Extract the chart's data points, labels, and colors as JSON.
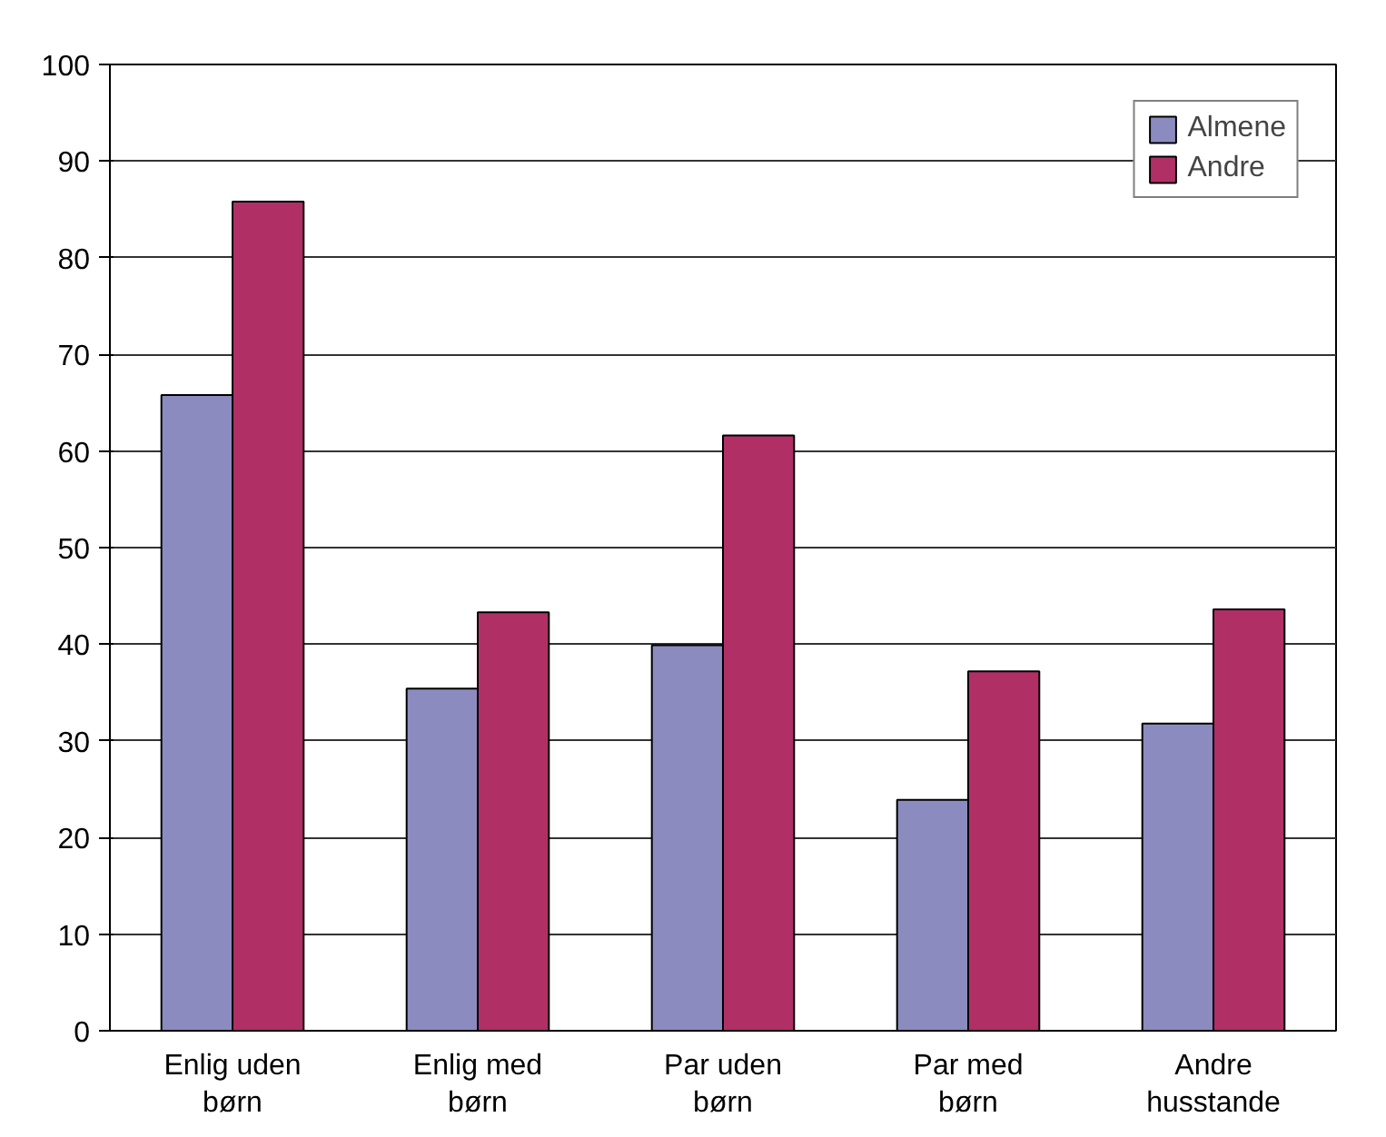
{
  "chart_data": {
    "type": "bar",
    "categories": [
      "Enlig uden\nbørn",
      "Enlig med\nbørn",
      "Par uden\nbørn",
      "Par med\nbørn",
      "Andre\nhusstande"
    ],
    "series": [
      {
        "name": "Almene",
        "color": "#8b8bbf",
        "values": [
          65.8,
          35.4,
          39.9,
          23.9,
          31.8
        ]
      },
      {
        "name": "Andre",
        "color": "#b03066",
        "values": [
          85.8,
          43.3,
          61.6,
          37.2,
          43.6
        ]
      }
    ],
    "ylim": [
      0,
      100
    ],
    "yticks": [
      0,
      10,
      20,
      30,
      40,
      50,
      60,
      70,
      80,
      90,
      100
    ],
    "grid": "y",
    "legend": "top right"
  }
}
